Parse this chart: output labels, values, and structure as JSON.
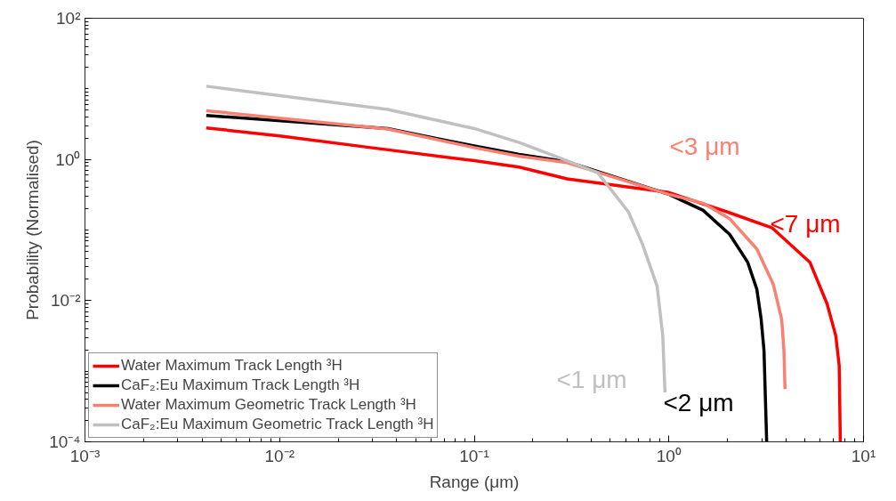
{
  "chart_data": {
    "type": "line",
    "xlabel": "Range (μm)",
    "ylabel": "Probability (Normalised)",
    "log": "xy",
    "grid": false,
    "legend": "bottom left",
    "line_style": "solid",
    "marker": "none",
    "xlim": [
      0.001,
      10
    ],
    "ylim": [
      0.0001,
      100
    ],
    "xticks": [
      {
        "value": 0.001,
        "label": "10⁻³"
      },
      {
        "value": 0.01,
        "label": "10⁻²"
      },
      {
        "value": 0.1,
        "label": "10⁻¹"
      },
      {
        "value": 1,
        "label": "10⁰"
      },
      {
        "value": 10,
        "label": "10¹"
      }
    ],
    "yticks": [
      {
        "value": 0.0001,
        "label": "10⁻⁴"
      },
      {
        "value": 0.01,
        "label": "10⁻²"
      },
      {
        "value": 1,
        "label": "10⁰"
      },
      {
        "value": 100,
        "label": "10²"
      }
    ],
    "series": [
      {
        "name": "Water Maximum Track Length ³H",
        "color": "#ff0000",
        "x": [
          0.0042,
          0.01,
          0.03,
          0.1,
          0.17,
          0.3,
          1.0,
          2.0,
          3.4,
          5.3,
          6.5,
          7.2,
          7.5,
          7.6
        ],
        "values": [
          2.8,
          2.15,
          1.46,
          0.96,
          0.78,
          0.53,
          0.34,
          0.18,
          0.107,
          0.035,
          0.009,
          0.0032,
          0.0012,
          0.0001
        ]
      },
      {
        "name": "CaF₂:Eu Maximum Track Length ³H",
        "color": "#000000",
        "x": [
          0.0042,
          0.036,
          0.1,
          0.17,
          0.3,
          1.0,
          1.5,
          2.05,
          2.54,
          2.83,
          2.98,
          3.08,
          3.18
        ],
        "values": [
          4.2,
          2.74,
          1.55,
          1.18,
          0.93,
          0.32,
          0.19,
          0.087,
          0.035,
          0.0145,
          0.0054,
          0.002,
          0.0001
        ]
      },
      {
        "name": "Water Maximum Geometric Track Length ³H",
        "color": "#fa8072",
        "x": [
          0.0042,
          0.036,
          0.1,
          0.17,
          0.3,
          1.0,
          1.5,
          2.05,
          2.83,
          3.44,
          3.8,
          3.9,
          3.95
        ],
        "values": [
          4.9,
          2.7,
          1.47,
          1.11,
          0.9,
          0.32,
          0.24,
          0.145,
          0.054,
          0.017,
          0.0054,
          0.002,
          0.00056
        ]
      },
      {
        "name": "CaF₂:Eu Maximum Geometric Track Length ³H",
        "color": "#c0c0c0",
        "x": [
          0.0042,
          0.036,
          0.1,
          0.17,
          0.3,
          0.43,
          0.51,
          0.62,
          0.73,
          0.87,
          0.93,
          0.955
        ],
        "values": [
          10.9,
          5.1,
          2.74,
          1.74,
          0.96,
          0.65,
          0.36,
          0.18,
          0.064,
          0.016,
          0.0032,
          0.0005
        ]
      }
    ],
    "annotations": [
      "<7 μm",
      "<2 μm",
      "<3 μm",
      "<1 μm"
    ]
  }
}
